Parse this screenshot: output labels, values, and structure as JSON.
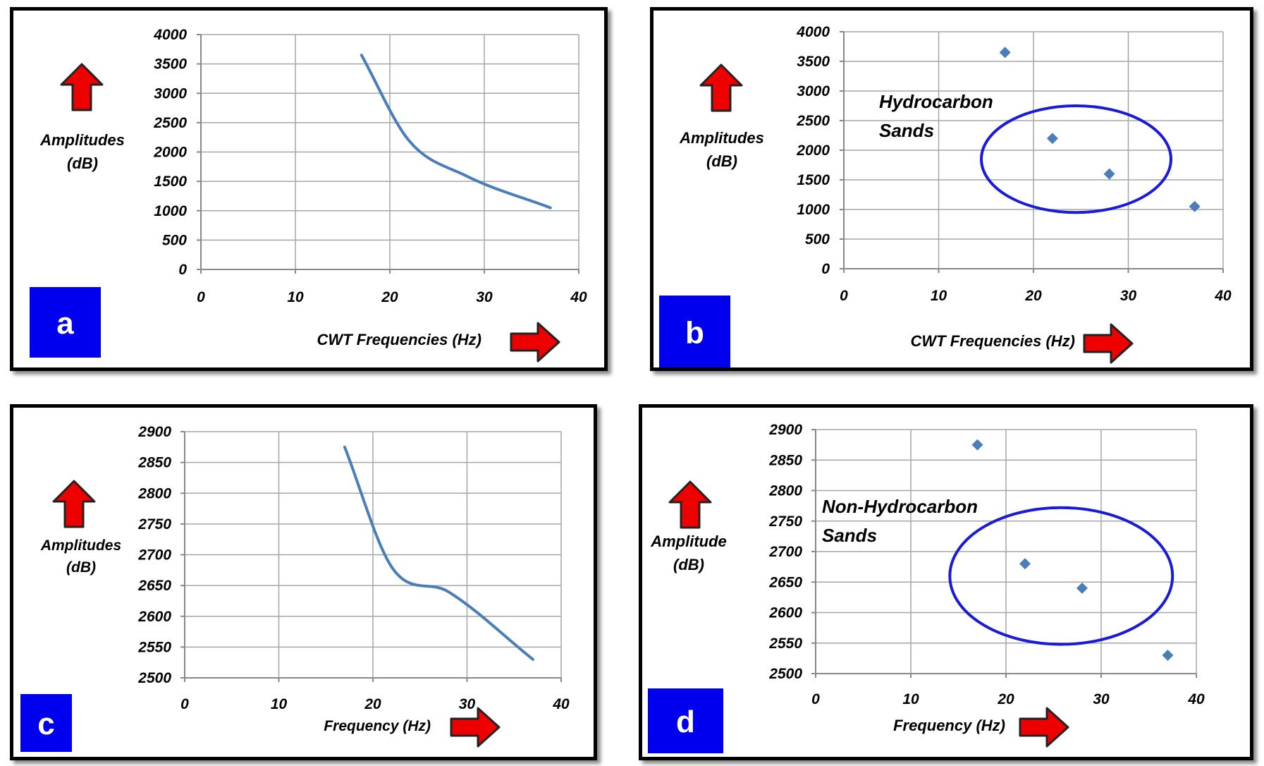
{
  "colors": {
    "series": "#4a7ebb",
    "ellipse": "#1a1adc",
    "badge": "#0000ee",
    "arrow_fill": "#ee0000",
    "grid": "#a6a6a6"
  },
  "chart_data": [
    {
      "type": "line",
      "badge": "a",
      "ylabel": [
        "Amplitudes",
        "(dB)"
      ],
      "xlabel": "CWT  Frequencies (Hz)",
      "xlim": [
        0,
        40
      ],
      "ylim": [
        0,
        4000
      ],
      "xticks": [
        0,
        10,
        20,
        30,
        40
      ],
      "yticks": [
        0,
        500,
        1000,
        1500,
        2000,
        2500,
        3000,
        3500,
        4000
      ],
      "grid": true,
      "x": [
        17,
        22,
        28,
        37
      ],
      "y": [
        3650,
        2200,
        1600,
        1050
      ]
    },
    {
      "type": "scatter",
      "badge": "b",
      "ylabel": [
        "Amplitudes",
        "(dB)"
      ],
      "xlabel": "CWT Frequencies (Hz)",
      "xlim": [
        0,
        40
      ],
      "ylim": [
        0,
        4000
      ],
      "xticks": [
        0,
        10,
        20,
        30,
        40
      ],
      "yticks": [
        0,
        500,
        1000,
        1500,
        2000,
        2500,
        3000,
        3500,
        4000
      ],
      "grid": true,
      "x": [
        17,
        22,
        28,
        37
      ],
      "y": [
        3650,
        2200,
        1600,
        1050
      ],
      "annotation": [
        "Hydrocarbon",
        "Sands"
      ],
      "ellipse": {
        "cx": 24.5,
        "cy": 1850,
        "rx": 10,
        "ry": 900
      }
    },
    {
      "type": "line",
      "badge": "c",
      "ylabel": [
        "Amplitudes",
        "(dB)"
      ],
      "xlabel": "Frequency (Hz)",
      "xlim": [
        0,
        40
      ],
      "ylim": [
        2500,
        2900
      ],
      "xticks": [
        0,
        10,
        20,
        30,
        40
      ],
      "yticks": [
        2500,
        2550,
        2600,
        2650,
        2700,
        2750,
        2800,
        2850,
        2900
      ],
      "grid": true,
      "x": [
        17,
        22,
        28,
        37
      ],
      "y": [
        2875,
        2680,
        2640,
        2530
      ]
    },
    {
      "type": "scatter",
      "badge": "d",
      "ylabel": [
        "Amplitude",
        "(dB)"
      ],
      "xlabel": "Frequency (Hz)",
      "xlim": [
        0,
        40
      ],
      "ylim": [
        2500,
        2900
      ],
      "xticks": [
        0,
        10,
        20,
        30,
        40
      ],
      "yticks": [
        2500,
        2550,
        2600,
        2650,
        2700,
        2750,
        2800,
        2850,
        2900
      ],
      "grid": true,
      "x": [
        17,
        22,
        28,
        37
      ],
      "y": [
        2875,
        2680,
        2640,
        2530
      ],
      "annotation": [
        "Non-Hydrocarbon",
        "Sands"
      ],
      "ellipse": {
        "cx": 25.8,
        "cy": 2660,
        "rx": 11.7,
        "ry": 112
      }
    }
  ]
}
